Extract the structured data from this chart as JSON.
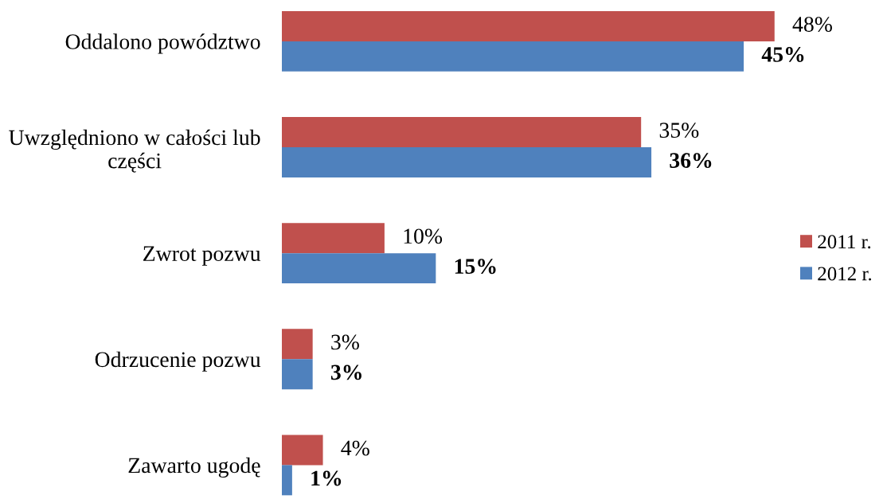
{
  "chart_data": {
    "type": "bar",
    "orientation": "horizontal",
    "categories": [
      "Oddalono powództwo",
      "Uwzględniono w całości lub\nczęści",
      "Zwrot pozwu",
      "Odrzucenie pozwu",
      "Zawarto ugodę"
    ],
    "series": [
      {
        "name": "2011 r.",
        "color": "#c0504d",
        "values": [
          48,
          35,
          10,
          3,
          4
        ],
        "value_labels": [
          "48%",
          "35%",
          "10%",
          "3%",
          "4%"
        ]
      },
      {
        "name": "2012 r.",
        "color": "#4f81bd",
        "values": [
          45,
          36,
          15,
          3,
          1
        ],
        "value_labels": [
          "45%",
          "36%",
          "15%",
          "3%",
          "1%"
        ]
      }
    ],
    "legend": "right",
    "tick_labels": "y"
  }
}
